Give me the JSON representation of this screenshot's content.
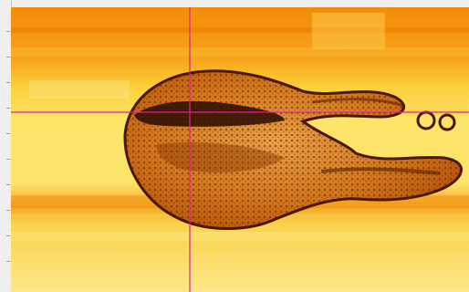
{
  "viewer": {
    "colormap": "hot",
    "colors": {
      "background": "#f0f0f0",
      "crosshair": "#e0209a",
      "low": "#f08a00",
      "mid": "#f9c62a",
      "high": "#fff27a",
      "dark": "#3a1200"
    }
  }
}
